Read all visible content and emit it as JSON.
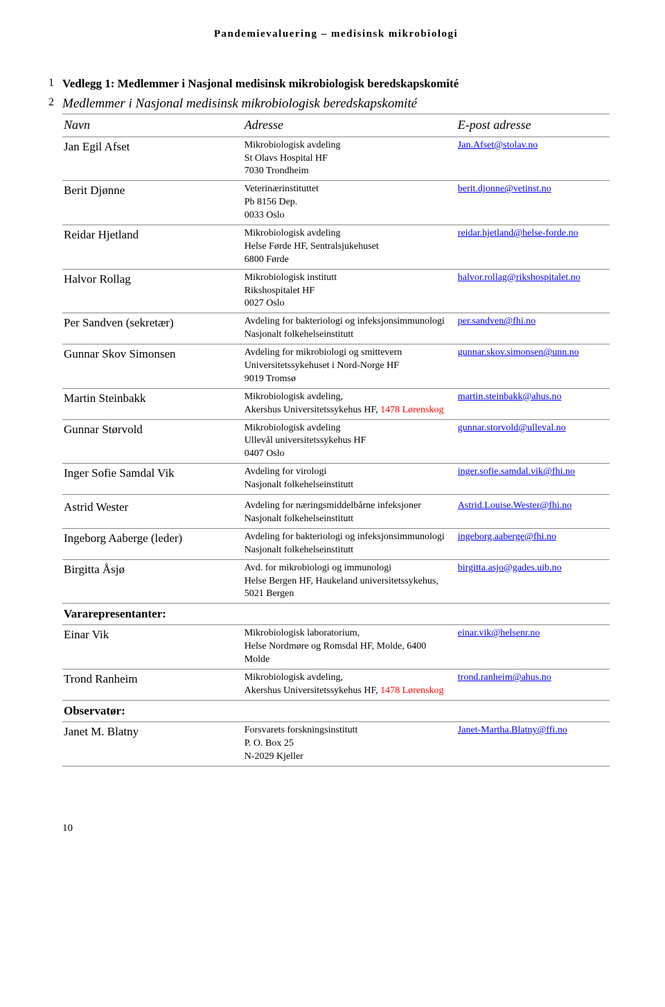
{
  "header": "Pandemievaluering – medisinsk mikrobiologi",
  "line1_num": "1",
  "line2_num": "2",
  "attachment_title": "Vedlegg 1: Medlemmer i Nasjonal medisinsk mikrobiologisk beredskapskomité",
  "section_title": "Medlemmer i Nasjonal medisinsk mikrobiologisk beredskapskomité",
  "columns": {
    "c1": "Navn",
    "c2": "Adresse",
    "c3": "E-post adresse"
  },
  "rows": [
    {
      "name": "Jan Egil Afset",
      "addr": "Mikrobiologisk avdeling\nSt Olavs Hospital HF\n7030 Trondheim",
      "email": "Jan.Afset@stolav.no"
    },
    {
      "name": "Berit Djønne",
      "addr": "Veterinærinstituttet\nPb 8156 Dep.\n0033 Oslo",
      "email": "berit.djonne@vetinst.no"
    },
    {
      "name": "Reidar Hjetland",
      "addr": "Mikrobiologisk avdeling\nHelse Førde HF, Sentralsjukehuset\n6800 Førde",
      "email": "reidar.hjetland@helse-forde.no"
    },
    {
      "name": "Halvor Rollag",
      "addr": "Mikrobiologisk institutt\nRikshospitalet HF\n0027 Oslo",
      "email": "halvor.rollag@rikshospitalet.no"
    },
    {
      "name": "Per Sandven  (sekretær)",
      "addr": "Avdeling for bakteriologi og infeksjonsimmunologi\nNasjonalt folkehelseinstitutt",
      "email": "per.sandven@fhi.no"
    },
    {
      "name": "Gunnar Skov Simonsen",
      "addr": "Avdeling for mikrobiologi og smittevern\nUniversitetssykehuset i Nord-Norge HF\n9019 Tromsø",
      "email": "gunnar.skov.simonsen@unn.no"
    },
    {
      "name": "Martin Steinbakk",
      "addr_pre": "Mikrobiologisk avdeling,\nAkershus Universitetssykehus HF, ",
      "addr_red": "1478 Lørenskog",
      "email": "martin.steinbakk@ahus.no"
    },
    {
      "name": "Gunnar Størvold",
      "addr": "Mikrobiologisk avdeling\nUllevål universitetssykehus HF\n0407 Oslo",
      "email": "gunnar.storvold@ulleval.no"
    },
    {
      "name": "Inger Sofie Samdal Vik",
      "addr": "Avdeling for virologi\nNasjonalt folkehelseinstitutt",
      "email": "inger.sofie.samdal.vik@fhi.no"
    },
    {
      "name": "Astrid Wester",
      "addr": "Avdeling for næringsmiddelbårne infeksjoner\nNasjonalt folkehelseinstitutt",
      "email": "Astrid.Louise.Wester@fhi.no"
    },
    {
      "name": "Ingeborg Aaberge (leder)",
      "addr": "Avdeling for bakteriologi og infeksjonsimmunologi\nNasjonalt folkehelseinstitutt",
      "email": "ingeborg.aaberge@fhi.no"
    },
    {
      "name": "Birgitta Åsjø",
      "addr": "Avd. for mikrobiologi og immunologi\nHelse Bergen HF, Haukeland universitetssykehus, 5021 Bergen",
      "email": "birgitta.asjo@gades.uib.no"
    }
  ],
  "sub1": "Vararepresentanter:",
  "rows2": [
    {
      "name": "Einar Vik",
      "addr": "Mikrobiologisk laboratorium,\nHelse Nordmøre og Romsdal HF, Molde, 6400 Molde",
      "email": "einar.vik@helsenr.no"
    },
    {
      "name": "Trond Ranheim",
      "addr_pre": "Mikrobiologisk avdeling,\nAkershus Universitetssykehus HF, ",
      "addr_red": "1478 Lørenskog",
      "email": "trond.ranheim@ahus.no"
    }
  ],
  "sub2": "Observatør:",
  "rows3": [
    {
      "name": "Janet M. Blatny",
      "addr": "Forsvarets forskningsinstitutt\nP. O. Box 25\nN-2029 Kjeller",
      "email": "Janet-Martha.Blatny@ffi.no"
    }
  ],
  "page_num": "10"
}
